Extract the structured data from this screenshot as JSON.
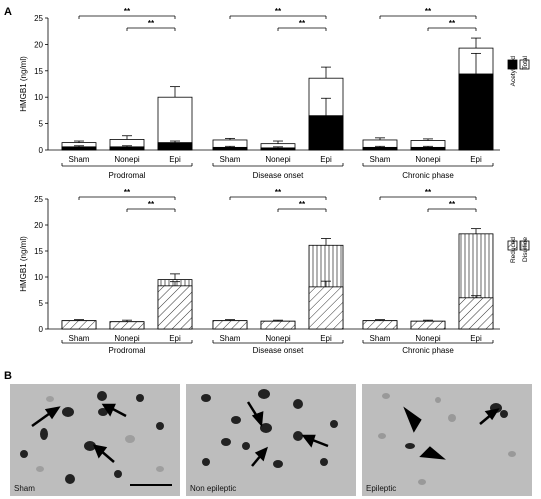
{
  "panel_labels": {
    "a": "A",
    "b": "B"
  },
  "chart_data": [
    {
      "type": "bar",
      "ylabel": "HMGB1 (ng/ml)",
      "ylim": [
        0,
        25
      ],
      "yticks": [
        0,
        5,
        10,
        15,
        20,
        25
      ],
      "legend": {
        "items": [
          "Acetylated",
          "Total"
        ],
        "position": "right"
      },
      "groups": [
        {
          "name": "Prodromal",
          "categories": [
            "Sham",
            "Nonepi",
            "Epi"
          ],
          "total": [
            1.4,
            2.0,
            10.0
          ],
          "total_err": [
            0.3,
            0.7,
            2.0
          ],
          "part": [
            0.6,
            0.6,
            1.4
          ],
          "part_err": [
            0.2,
            0.2,
            0.3
          ]
        },
        {
          "name": "Disease onset",
          "categories": [
            "Sham",
            "Nonepi",
            "Epi"
          ],
          "total": [
            1.9,
            1.2,
            13.6
          ],
          "total_err": [
            0.3,
            0.5,
            2.1
          ],
          "part": [
            0.5,
            0.4,
            6.5
          ],
          "part_err": [
            0.2,
            0.2,
            3.3
          ]
        },
        {
          "name": "Chronic phase",
          "categories": [
            "Sham",
            "Nonepi",
            "Epi"
          ],
          "total": [
            1.9,
            1.8,
            19.3
          ],
          "total_err": [
            0.4,
            0.3,
            1.9
          ],
          "part": [
            0.5,
            0.5,
            14.4
          ],
          "part_err": [
            0.2,
            0.2,
            3.9
          ]
        }
      ],
      "significance": [
        "**",
        "**"
      ]
    },
    {
      "type": "bar",
      "ylabel": "HMGB1 (ng/ml)",
      "ylim": [
        0,
        25
      ],
      "yticks": [
        0,
        5,
        10,
        15,
        20,
        25
      ],
      "legend": {
        "items": [
          "Reduced",
          "Disulfide"
        ],
        "position": "right"
      },
      "groups": [
        {
          "name": "Prodromal",
          "categories": [
            "Sham",
            "Nonepi",
            "Epi"
          ],
          "total": [
            1.6,
            1.4,
            9.5
          ],
          "total_err": [
            0.2,
            0.3,
            1.1
          ],
          "part": [
            1.6,
            1.4,
            8.3
          ],
          "part_err": [
            0.0,
            0.0,
            0.8
          ]
        },
        {
          "name": "Disease onset",
          "categories": [
            "Sham",
            "Nonepi",
            "Epi"
          ],
          "total": [
            1.6,
            1.5,
            16.1
          ],
          "total_err": [
            0.2,
            0.2,
            1.3
          ],
          "part": [
            1.6,
            1.5,
            8.1
          ],
          "part_err": [
            0.0,
            0.0,
            1.1
          ]
        },
        {
          "name": "Chronic phase",
          "categories": [
            "Sham",
            "Nonepi",
            "Epi"
          ],
          "total": [
            1.6,
            1.5,
            18.3
          ],
          "total_err": [
            0.2,
            0.2,
            1.0
          ],
          "part": [
            1.6,
            1.5,
            6.0
          ],
          "part_err": [
            0.0,
            0.0,
            0.4
          ]
        }
      ],
      "significance": [
        "**",
        "**"
      ]
    }
  ],
  "micrographs": [
    {
      "label": "Sham"
    },
    {
      "label": "Non epileptic"
    },
    {
      "label": "Epileptic"
    }
  ],
  "colors": {
    "axis": "#000000",
    "fill_dark": "#000000",
    "fill_light": "#ffffff",
    "micro_bg": "#bdbdbd"
  }
}
